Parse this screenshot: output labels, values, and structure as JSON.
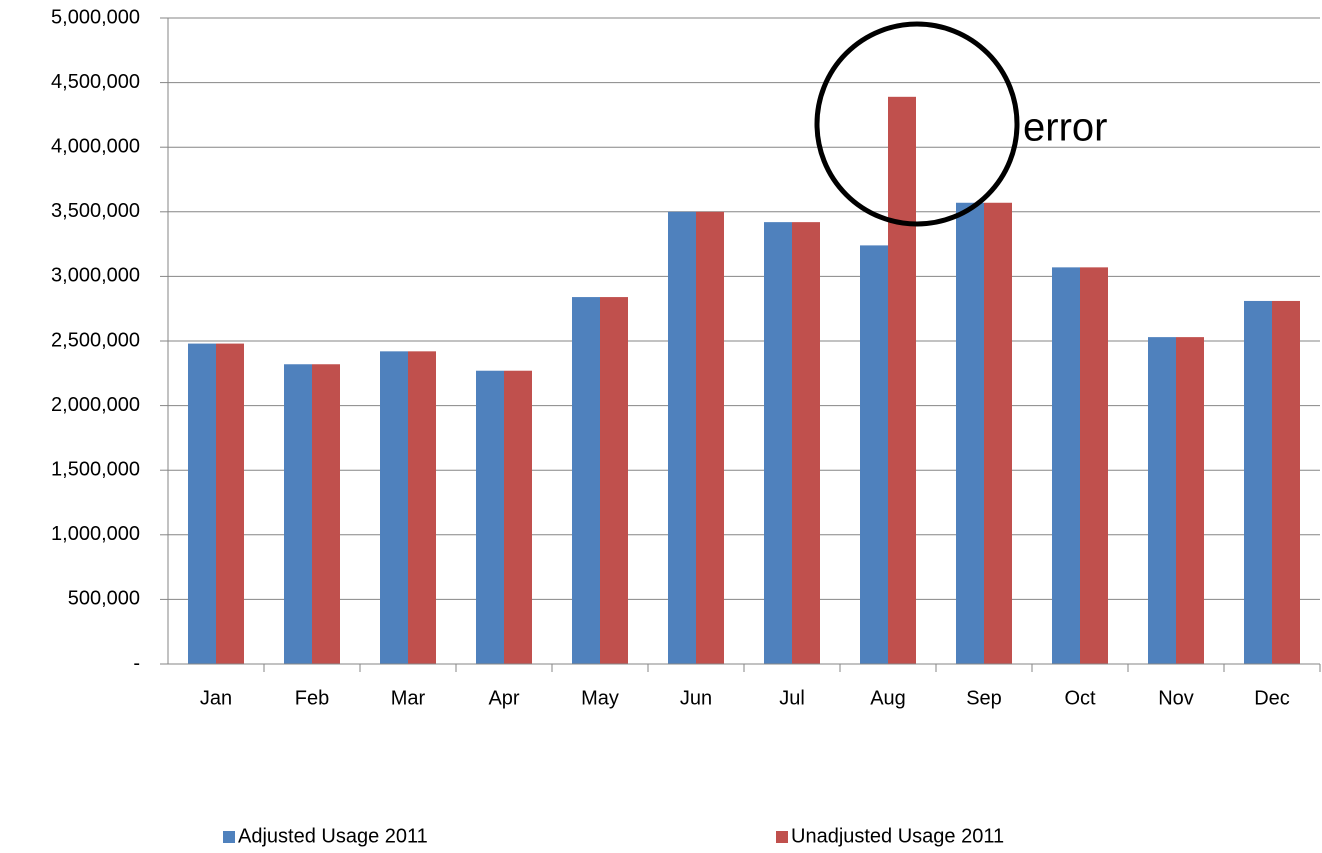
{
  "chart_data": {
    "type": "bar",
    "categories": [
      "Jan",
      "Feb",
      "Mar",
      "Apr",
      "May",
      "Jun",
      "Jul",
      "Aug",
      "Sep",
      "Oct",
      "Nov",
      "Dec"
    ],
    "series": [
      {
        "name": "Adjusted Usage 2011",
        "color": "#4f81bd",
        "values": [
          2480000,
          2320000,
          2420000,
          2270000,
          2840000,
          3500000,
          3420000,
          3240000,
          3570000,
          3070000,
          2530000,
          2810000
        ]
      },
      {
        "name": "Unadjusted Usage 2011",
        "color": "#c0504d",
        "values": [
          2480000,
          2320000,
          2420000,
          2270000,
          2840000,
          3500000,
          3420000,
          4390000,
          3570000,
          3070000,
          2530000,
          2810000
        ]
      }
    ],
    "ylim": [
      0,
      5000000
    ],
    "yticks": [
      {
        "value": 0,
        "label": "-"
      },
      {
        "value": 500000,
        "label": "500,000"
      },
      {
        "value": 1000000,
        "label": "1,000,000"
      },
      {
        "value": 1500000,
        "label": "1,500,000"
      },
      {
        "value": 2000000,
        "label": "2,000,000"
      },
      {
        "value": 2500000,
        "label": "2,500,000"
      },
      {
        "value": 3000000,
        "label": "3,000,000"
      },
      {
        "value": 3500000,
        "label": "3,500,000"
      },
      {
        "value": 4000000,
        "label": "4,000,000"
      },
      {
        "value": 4500000,
        "label": "4,500,000"
      },
      {
        "value": 5000000,
        "label": "5,000,000"
      }
    ],
    "grid": true,
    "legend": "bottom",
    "annotation": "error"
  }
}
